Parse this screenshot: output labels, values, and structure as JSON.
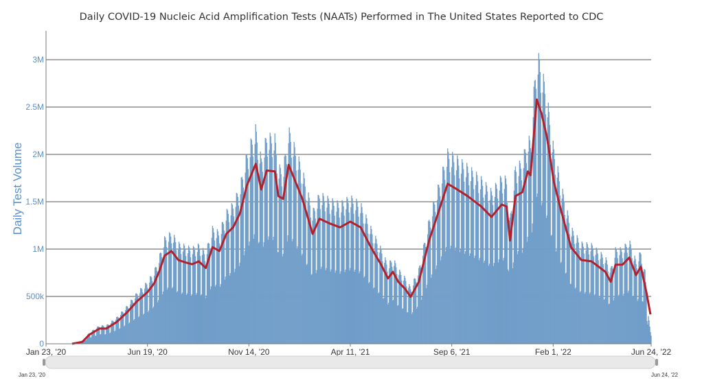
{
  "chart_data": {
    "type": "bar",
    "title": "Daily COVID-19 Nucleic Acid Amplification Tests (NAATs) Performed in The United States Reported to CDC",
    "xlabel": "",
    "ylabel": "Daily Test Volume",
    "xlim": [
      "2020-01-23",
      "2022-06-24"
    ],
    "ylim": [
      0,
      3200000
    ],
    "x_ticks": [
      "Jan 23, '20",
      "Jun 19, '20",
      "Nov 14, '20",
      "Apr 11, '21",
      "Sep 6, '21",
      "Feb 1, '22",
      "Jun 24, '22"
    ],
    "x_tick_dates": [
      "2020-01-23",
      "2020-06-19",
      "2020-11-14",
      "2021-04-11",
      "2021-09-06",
      "2022-02-01",
      "2022-06-24"
    ],
    "y_ticks": [
      0,
      500000,
      1000000,
      1500000,
      2000000,
      2500000,
      3000000
    ],
    "y_tick_labels": [
      "0",
      "500k",
      "1M",
      "1.5M",
      "2M",
      "2.5M",
      "3M"
    ],
    "grid": "horizontal",
    "range_slider": {
      "start_label": "Jan 23, '20",
      "end_label": "Jun 24, '22"
    },
    "colors": {
      "bars": "#7ba7d0",
      "bar_edge": "#5f8fbf",
      "average_line": "#b3202a",
      "axis_text": "#5b8fc7"
    },
    "series": [
      {
        "type": "bar",
        "description_of_values": "daily test volume (fluctuates weekly around the 7-day average)"
      },
      {
        "type": "line",
        "points": [
          [
            "2020-01-23",
            0
          ],
          [
            "2020-03-01",
            0
          ],
          [
            "2020-03-16",
            20000
          ],
          [
            "2020-03-26",
            95000
          ],
          [
            "2020-04-10",
            160000
          ],
          [
            "2020-04-20",
            160000
          ],
          [
            "2020-05-05",
            230000
          ],
          [
            "2020-05-20",
            330000
          ],
          [
            "2020-06-04",
            450000
          ],
          [
            "2020-06-19",
            545000
          ],
          [
            "2020-06-29",
            640000
          ],
          [
            "2020-07-06",
            760000
          ],
          [
            "2020-07-14",
            930000
          ],
          [
            "2020-07-24",
            980000
          ],
          [
            "2020-08-03",
            885000
          ],
          [
            "2020-08-13",
            860000
          ],
          [
            "2020-08-23",
            840000
          ],
          [
            "2020-09-02",
            870000
          ],
          [
            "2020-09-12",
            800000
          ],
          [
            "2020-09-22",
            1020000
          ],
          [
            "2020-10-02",
            980000
          ],
          [
            "2020-10-12",
            1160000
          ],
          [
            "2020-10-22",
            1230000
          ],
          [
            "2020-11-01",
            1380000
          ],
          [
            "2020-11-11",
            1670000
          ],
          [
            "2020-11-24",
            1900000
          ],
          [
            "2020-12-02",
            1630000
          ],
          [
            "2020-12-10",
            1830000
          ],
          [
            "2020-12-22",
            1820000
          ],
          [
            "2020-12-27",
            1560000
          ],
          [
            "2021-01-03",
            1530000
          ],
          [
            "2021-01-11",
            1890000
          ],
          [
            "2021-01-21",
            1710000
          ],
          [
            "2021-01-31",
            1530000
          ],
          [
            "2021-02-15",
            1160000
          ],
          [
            "2021-02-25",
            1320000
          ],
          [
            "2021-03-12",
            1270000
          ],
          [
            "2021-03-27",
            1230000
          ],
          [
            "2021-04-11",
            1290000
          ],
          [
            "2021-04-26",
            1230000
          ],
          [
            "2021-05-11",
            1020000
          ],
          [
            "2021-05-26",
            835000
          ],
          [
            "2021-06-05",
            690000
          ],
          [
            "2021-06-12",
            760000
          ],
          [
            "2021-06-20",
            655000
          ],
          [
            "2021-06-30",
            580000
          ],
          [
            "2021-07-08",
            495000
          ],
          [
            "2021-07-20",
            655000
          ],
          [
            "2021-08-04",
            1090000
          ],
          [
            "2021-08-19",
            1420000
          ],
          [
            "2021-08-31",
            1690000
          ],
          [
            "2021-09-14",
            1630000
          ],
          [
            "2021-09-29",
            1560000
          ],
          [
            "2021-10-19",
            1450000
          ],
          [
            "2021-11-03",
            1340000
          ],
          [
            "2021-11-18",
            1470000
          ],
          [
            "2021-11-25",
            1450000
          ],
          [
            "2021-11-30",
            1090000
          ],
          [
            "2021-12-08",
            1560000
          ],
          [
            "2021-12-18",
            1600000
          ],
          [
            "2021-12-26",
            1820000
          ],
          [
            "2021-12-30",
            1780000
          ],
          [
            "2022-01-08",
            2580000
          ],
          [
            "2022-01-15",
            2430000
          ],
          [
            "2022-01-23",
            2180000
          ],
          [
            "2022-02-02",
            1710000
          ],
          [
            "2022-02-12",
            1420000
          ],
          [
            "2022-02-27",
            1020000
          ],
          [
            "2022-03-14",
            885000
          ],
          [
            "2022-03-29",
            870000
          ],
          [
            "2022-04-08",
            815000
          ],
          [
            "2022-04-18",
            760000
          ],
          [
            "2022-04-26",
            655000
          ],
          [
            "2022-05-03",
            835000
          ],
          [
            "2022-05-13",
            835000
          ],
          [
            "2022-05-23",
            910000
          ],
          [
            "2022-06-02",
            725000
          ],
          [
            "2022-06-09",
            815000
          ],
          [
            "2022-06-17",
            545000
          ],
          [
            "2022-06-23",
            310000
          ]
        ]
      }
    ]
  }
}
